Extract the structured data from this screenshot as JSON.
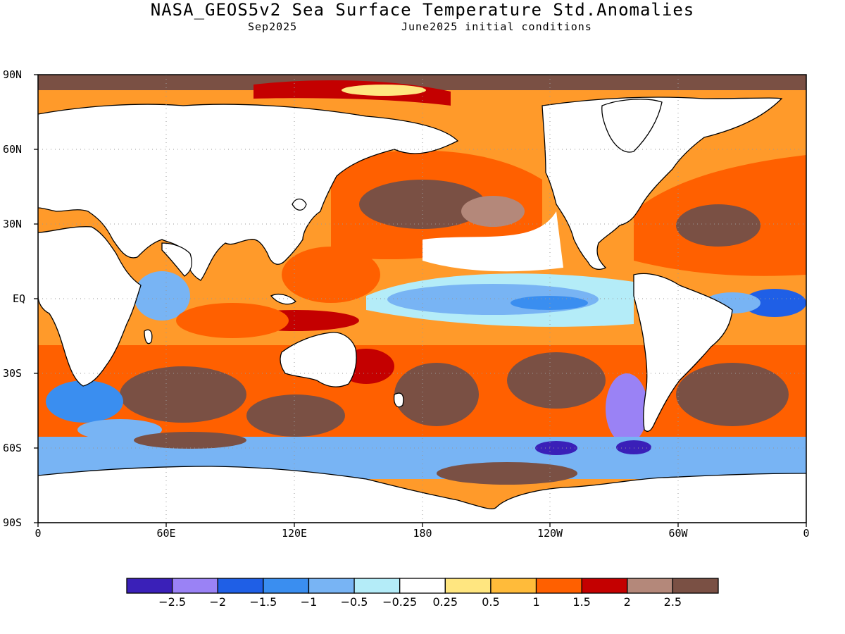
{
  "title": "NASA_GEOS5v2 Sea Surface Temperature Std.Anomalies",
  "subtitle_left": "Sep2025",
  "subtitle_right": "June2025 initial conditions",
  "map": {
    "lat_labels": [
      "90N",
      "60N",
      "30N",
      "EQ",
      "30S",
      "60S",
      "90S"
    ],
    "lon_labels": [
      "0",
      "60E",
      "120E",
      "180",
      "120W",
      "60W",
      "0"
    ],
    "land_color": "#ffffff",
    "grid": "dotted"
  },
  "colorbar": {
    "colors": [
      "#3a20b8",
      "#9a82f5",
      "#1f5fe6",
      "#3a8ef0",
      "#78b4f4",
      "#b4ecf8",
      "#ffffff",
      "#ffe680",
      "#ffbb3a",
      "#ff6000",
      "#c40000",
      "#b4887a",
      "#7a5044"
    ],
    "labels": [
      "−2.5",
      "−2",
      "−1.5",
      "−1",
      "−0.5",
      "−0.25",
      "0.25",
      "0.5",
      "1",
      "1.5",
      "2",
      "2.5"
    ]
  }
}
